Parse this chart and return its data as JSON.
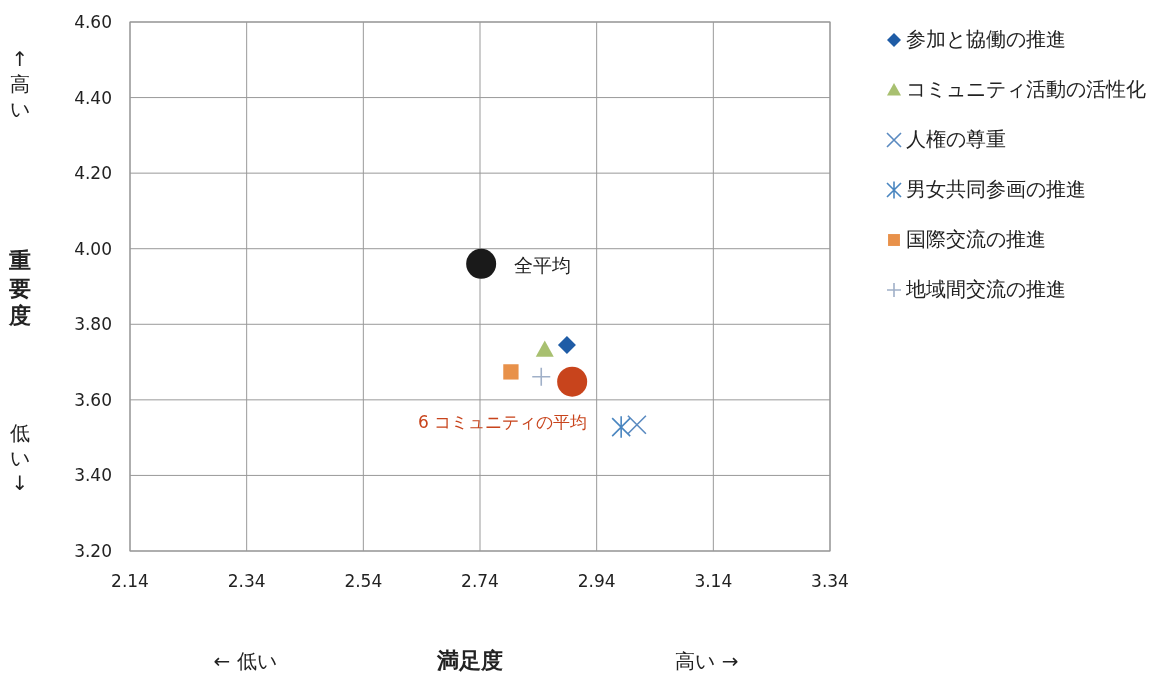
{
  "chart_data": {
    "type": "scatter",
    "xlabel": "満足度",
    "ylabel": "重要度",
    "xlim": [
      2.14,
      3.34
    ],
    "ylim": [
      3.2,
      4.6
    ],
    "xticks": [
      2.14,
      2.34,
      2.54,
      2.74,
      2.94,
      3.14,
      3.34
    ],
    "yticks": [
      {
        "value": 3.2,
        "label": "3.20"
      },
      {
        "value": 3.4,
        "label": "3.40"
      },
      {
        "value": 3.6,
        "label": "3.60"
      },
      {
        "value": 3.8,
        "label": "3.80"
      },
      {
        "value": 4.0,
        "label": "4.00"
      },
      {
        "value": 4.2,
        "label": "4.20"
      },
      {
        "value": 4.4,
        "label": "4.40"
      },
      {
        "value": 4.6,
        "label": "4.60"
      }
    ],
    "grid": true,
    "legend": "right",
    "annotations": [
      "↑高い",
      "低い↓",
      "← 低い",
      "高い →"
    ],
    "series": [
      {
        "name": "参加と協働の推進",
        "color": "#1f5ca6",
        "marker": "diamond",
        "x": [
          2.889
        ],
        "values": [
          3.745
        ]
      },
      {
        "name": "コミュニティ活動の活性化",
        "color": "#a8c070",
        "marker": "triangle",
        "x": [
          2.851
        ],
        "values": [
          3.733
        ]
      },
      {
        "name": "人権の尊重",
        "color": "#5a8ac0",
        "marker": "x",
        "x": [
          3.009
        ],
        "values": [
          3.534
        ]
      },
      {
        "name": "男女共同参画の推進",
        "color": "#4a86c0",
        "x": [
          2.982
        ],
        "values": [
          3.528
        ]
      },
      {
        "name": "国際交流の推進",
        "color": "#e8914a",
        "marker": "square",
        "x": [
          2.793
        ],
        "values": [
          3.674
        ]
      },
      {
        "name": "地域間交流の推進",
        "color": "#a0b0c8",
        "marker": "cross",
        "x": [
          2.845
        ],
        "values": [
          3.661
        ]
      },
      {
        "name": "全平均",
        "color": "#1a1a1a",
        "marker": "circle",
        "x": [
          2.742
        ],
        "values": [
          3.96
        ]
      },
      {
        "name": "6 コミュニティの平均",
        "color": "#c8441c",
        "marker": "circle",
        "x": [
          2.898
        ],
        "values": [
          3.648
        ]
      }
    ]
  }
}
